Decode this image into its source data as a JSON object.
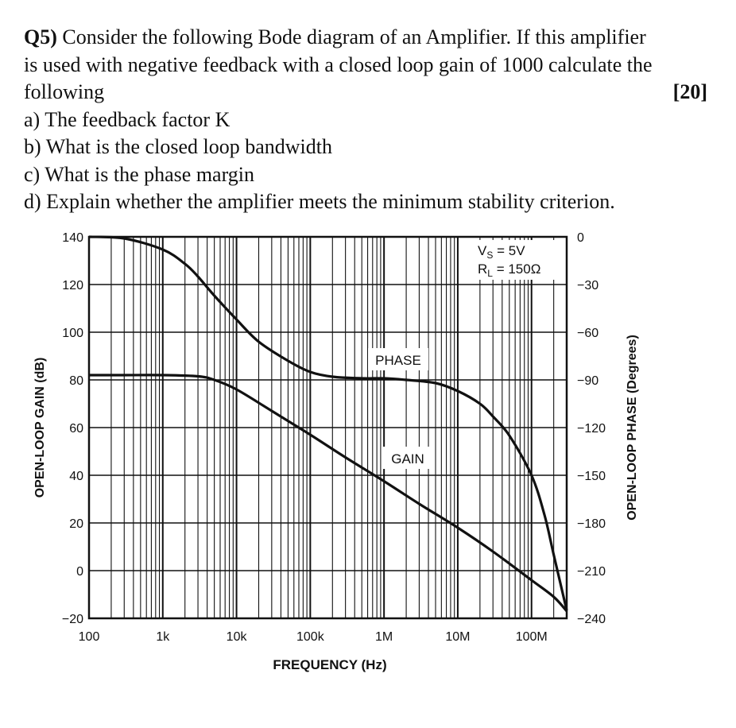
{
  "question": {
    "number": "Q5)",
    "intro_line1": "Consider the following Bode diagram of an Amplifier. If this amplifier",
    "intro_line2": "is used with negative feedback with a closed loop gain of 1000 calculate the",
    "intro_line3": "following",
    "marks": "[20]",
    "parts": [
      "a) The feedback factor K",
      "b) What is the closed loop bandwidth",
      "c) What is the phase margin",
      "d) Explain whether the amplifier meets the minimum stability criterion."
    ]
  },
  "chart_data": {
    "type": "line",
    "xlabel": "FREQUENCY (Hz)",
    "ylabel_left": "OPEN-LOOP GAIN (dB)",
    "ylabel_right": "OPEN-LOOP PHASE (Degrees)",
    "x_scale": "log",
    "xlim": [
      100,
      300000000
    ],
    "ylim_left": [
      -20,
      140
    ],
    "ylim_right": [
      -240,
      0
    ],
    "x_ticks": [
      {
        "value": 100,
        "label": "100"
      },
      {
        "value": 1000,
        "label": "1k"
      },
      {
        "value": 10000,
        "label": "10k"
      },
      {
        "value": 100000,
        "label": "100k"
      },
      {
        "value": 1000000,
        "label": "1M"
      },
      {
        "value": 10000000,
        "label": "10M"
      },
      {
        "value": 100000000,
        "label": "100M"
      }
    ],
    "y_ticks_left": [
      140,
      120,
      100,
      80,
      60,
      40,
      20,
      0,
      -20
    ],
    "y_ticks_right": [
      0,
      -30,
      -60,
      -90,
      -120,
      -150,
      -180,
      -210,
      -240
    ],
    "grid": true,
    "annotations": {
      "supply": "V",
      "supply_sub": "S",
      "supply_value": " = 5V",
      "load": "R",
      "load_sub": "L",
      "load_value": " = 150Ω",
      "phase_label": "PHASE",
      "gain_label": "GAIN"
    },
    "series": [
      {
        "name": "GAIN",
        "axis": "left",
        "x": [
          100,
          300,
          1000,
          3000,
          5000,
          10000,
          30000,
          100000,
          300000,
          1000000,
          3000000,
          10000000,
          30000000,
          100000000,
          200000000,
          300000000
        ],
        "y": [
          82,
          82,
          82,
          81.5,
          80,
          76,
          67,
          57,
          47.5,
          37.5,
          28,
          18,
          8,
          -4,
          -11,
          -17
        ]
      },
      {
        "name": "PHASE",
        "axis": "right",
        "x": [
          100,
          300,
          1000,
          2000,
          3000,
          5000,
          10000,
          20000,
          50000,
          100000,
          200000,
          500000,
          1000000,
          2000000,
          5000000,
          10000000,
          20000000,
          30000000,
          50000000,
          100000000,
          150000000,
          200000000,
          300000000
        ],
        "y": [
          0,
          -1,
          -8,
          -17,
          -25,
          -37,
          -52,
          -66,
          -78,
          -85,
          -88,
          -89,
          -89,
          -90,
          -92,
          -97,
          -105,
          -113,
          -125,
          -150,
          -175,
          -200,
          -235
        ]
      }
    ]
  }
}
